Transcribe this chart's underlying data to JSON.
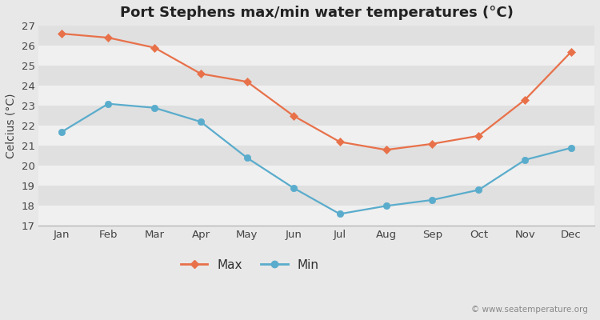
{
  "title": "Port Stephens max/min water temperatures (°C)",
  "ylabel": "Celcius (°C)",
  "months": [
    "Jan",
    "Feb",
    "Mar",
    "Apr",
    "May",
    "Jun",
    "Jul",
    "Aug",
    "Sep",
    "Oct",
    "Nov",
    "Dec"
  ],
  "max_values": [
    26.6,
    26.4,
    25.9,
    24.6,
    24.2,
    22.5,
    21.2,
    20.8,
    21.1,
    21.5,
    23.3,
    25.7
  ],
  "min_values": [
    21.7,
    23.1,
    22.9,
    22.2,
    20.4,
    18.9,
    17.6,
    18.0,
    18.3,
    18.8,
    20.3,
    20.9
  ],
  "max_color": "#e8714a",
  "min_color": "#5aaccc",
  "bg_color": "#e8e8e8",
  "band_color_light": "#f0f0f0",
  "band_color_dark": "#e0e0e0",
  "ylim": [
    17,
    27
  ],
  "yticks": [
    17,
    18,
    19,
    20,
    21,
    22,
    23,
    24,
    25,
    26,
    27
  ],
  "legend_max": "Max",
  "legend_min": "Min",
  "watermark": "© www.seatemperature.org",
  "title_fontsize": 13,
  "label_fontsize": 10,
  "tick_fontsize": 9.5,
  "legend_fontsize": 11
}
